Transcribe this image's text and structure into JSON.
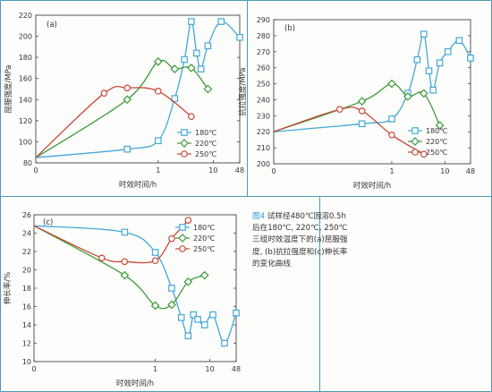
{
  "caption": {
    "figure_number": "图4",
    "text": " 试样经480℃固溶0.5h后在180℃, 220℃, 250℃三组时效温度下的(a)屈服强度, (b)抗拉强度和(c)伸长率的变化曲线"
  },
  "colors": {
    "180": "#42a8d8",
    "220": "#3c9a3c",
    "250": "#c8483a",
    "frame": "#4a9ab8",
    "axis": "#444444"
  },
  "chart_data": [
    {
      "type": "line",
      "panel_label": "(a)",
      "ylabel": "屈服强度/MPa",
      "xlabel": "时效时间/h",
      "ylim": [
        80,
        220
      ],
      "yticks": [
        80,
        100,
        120,
        140,
        160,
        180,
        200,
        220
      ],
      "xticks": [
        {
          "label": "0"
        },
        {
          "label": "1"
        },
        {
          "label": "10"
        },
        {
          "label": "48"
        }
      ],
      "legend": [
        "180℃",
        "220℃",
        "250℃"
      ],
      "series": [
        {
          "name": "180℃",
          "marker": "square",
          "x": [
            0.5,
            1,
            2,
            3,
            4,
            5,
            6,
            8,
            16,
            48
          ],
          "y": [
            93,
            101,
            141,
            178,
            214,
            184,
            169,
            191,
            214,
            199
          ]
        },
        {
          "name": "220℃",
          "marker": "diamond",
          "x": [
            0.5,
            1,
            2,
            4,
            8
          ],
          "y": [
            140,
            176,
            169,
            170,
            150
          ]
        },
        {
          "name": "250℃",
          "marker": "circle",
          "x": [
            0.25,
            0.5,
            1,
            4
          ],
          "y": [
            146,
            151,
            148,
            124
          ]
        }
      ]
    },
    {
      "type": "line",
      "panel_label": "(b)",
      "ylabel": "抗拉强度/MPa",
      "xlabel": "时效时间/h",
      "ylim": [
        200,
        290
      ],
      "yticks": [
        200,
        210,
        220,
        230,
        240,
        250,
        260,
        270,
        280,
        290
      ],
      "xticks": [
        {
          "label": "0"
        },
        {
          "label": "1"
        },
        {
          "label": "10"
        },
        {
          "label": "48"
        }
      ],
      "legend": [
        "180℃",
        "220℃",
        "250℃"
      ],
      "series": [
        {
          "name": "180℃",
          "marker": "square",
          "x": [
            0.5,
            1,
            2,
            3,
            4,
            5,
            6,
            8,
            12,
            24,
            48
          ],
          "y": [
            225,
            228,
            244,
            265,
            281,
            258,
            246,
            263,
            270,
            277,
            266
          ]
        },
        {
          "name": "220℃",
          "marker": "diamond",
          "x": [
            0.5,
            1,
            2,
            4,
            8
          ],
          "y": [
            239,
            250,
            242,
            244,
            224
          ]
        },
        {
          "name": "250℃",
          "marker": "circle",
          "x": [
            0.25,
            0.5,
            1,
            4
          ],
          "y": [
            234,
            233,
            218,
            206
          ]
        }
      ]
    },
    {
      "type": "line",
      "panel_label": "(c)",
      "ylabel": "伸长率/%",
      "xlabel": "时效时间/h",
      "ylim": [
        10,
        26
      ],
      "yticks": [
        10,
        12,
        14,
        16,
        18,
        20,
        22,
        24,
        26
      ],
      "xticks": [
        {
          "label": "0"
        },
        {
          "label": "1"
        },
        {
          "label": "10"
        },
        {
          "label": "48"
        }
      ],
      "legend": [
        "180℃",
        "220℃",
        "250℃"
      ],
      "series": [
        {
          "name": "180℃",
          "marker": "square",
          "x": [
            0.5,
            1,
            2,
            3,
            4,
            5,
            6,
            8,
            12,
            24,
            48
          ],
          "y": [
            24.1,
            21.9,
            18.0,
            14.8,
            12.8,
            15.1,
            14.6,
            14.0,
            15.1,
            12.0,
            15.3
          ]
        },
        {
          "name": "220℃",
          "marker": "diamond",
          "x": [
            0.5,
            1,
            2,
            4,
            8
          ],
          "y": [
            19.4,
            16.1,
            16.2,
            18.7,
            19.4
          ]
        },
        {
          "name": "250℃",
          "marker": "circle",
          "x": [
            0.25,
            0.5,
            1,
            2,
            4
          ],
          "y": [
            21.3,
            20.9,
            21.0,
            23.4,
            25.4
          ]
        }
      ]
    }
  ]
}
